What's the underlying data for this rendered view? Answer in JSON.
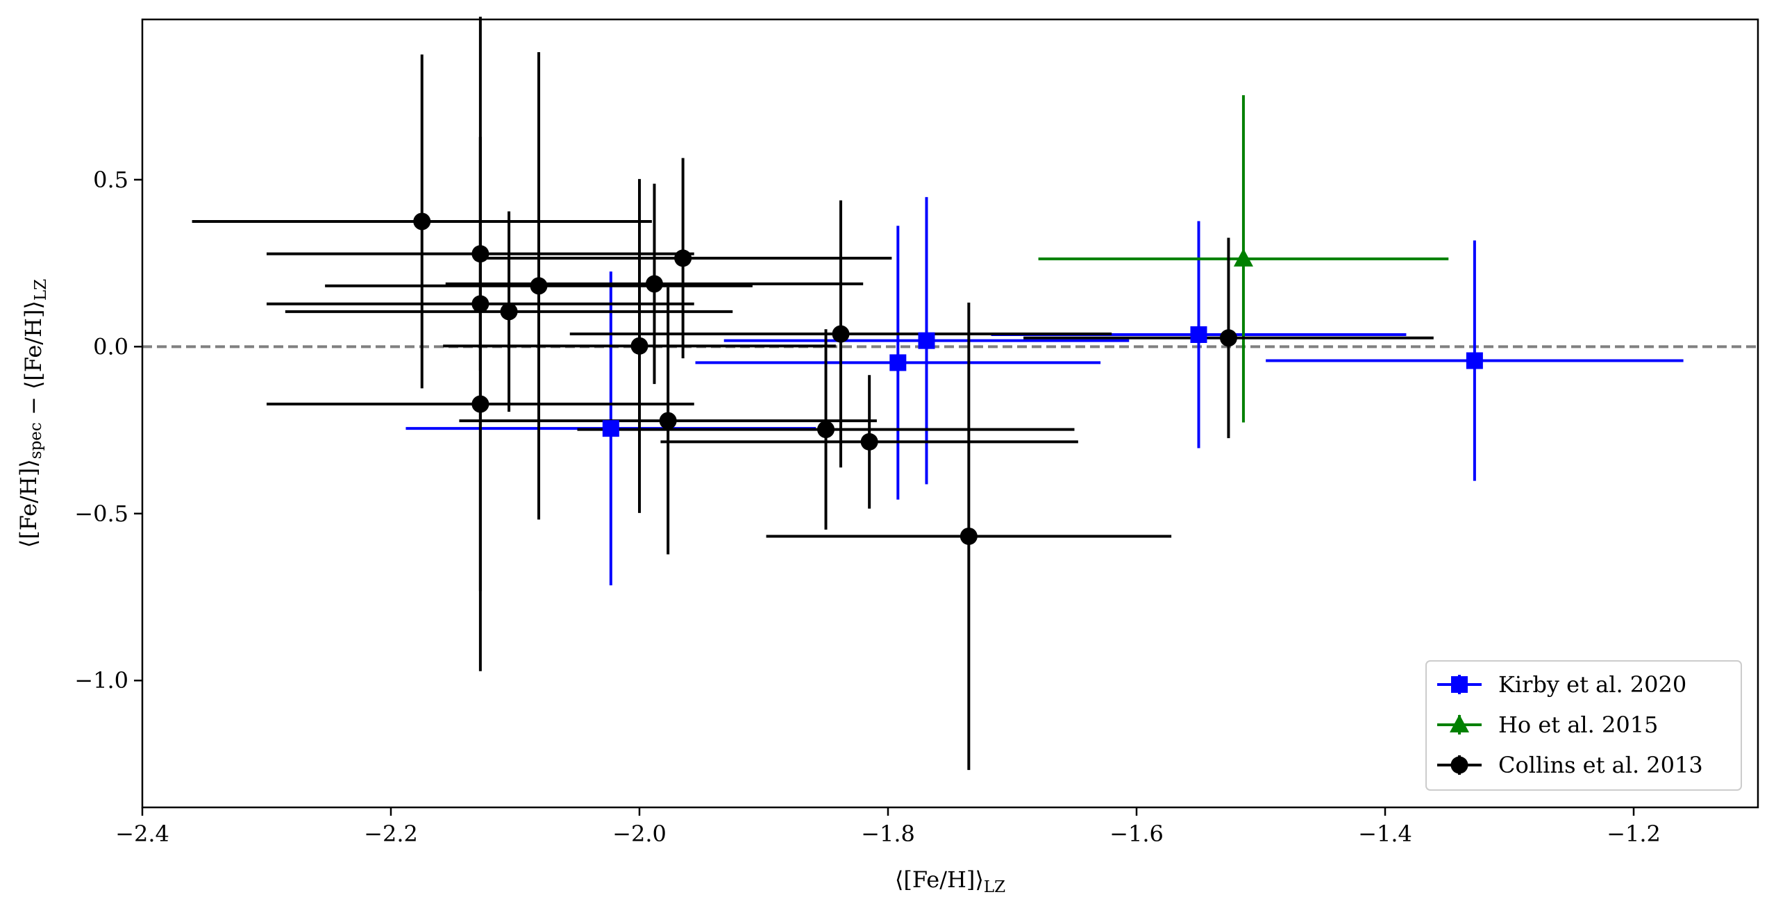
{
  "chart_data": {
    "type": "scatter",
    "title": "",
    "xlabel": "⟨[Fe/H]⟩LZ",
    "ylabel": "⟨[Fe/H]⟩spec − ⟨[Fe/H]⟩LZ",
    "xlim": [
      -2.4,
      -1.1
    ],
    "ylim": [
      -1.38,
      0.98
    ],
    "xticks": [
      -2.4,
      -2.2,
      -2.0,
      -1.8,
      -1.6,
      -1.4,
      -1.2
    ],
    "xtick_labels": [
      "−2.4",
      "−2.2",
      "−2.0",
      "−1.8",
      "−1.6",
      "−1.4",
      "−1.2"
    ],
    "yticks": [
      0.5,
      0.0,
      -0.5,
      -1.0
    ],
    "ytick_labels": [
      "0.5",
      "0.0",
      "−0.5",
      "−1.0"
    ],
    "reference_line": {
      "y": 0.0,
      "style": "dashed",
      "color": "#808080"
    },
    "grid": false,
    "legend_position": "bottom-right",
    "series": [
      {
        "name": "Kirby et al. 2020",
        "marker": "square",
        "color": "#0000ff",
        "points": [
          {
            "x": -2.023,
            "y": -0.245,
            "xerr": 0.165,
            "yerr": 0.47
          },
          {
            "x": -1.792,
            "y": -0.048,
            "xerr": 0.163,
            "yerr": 0.41
          },
          {
            "x": -1.769,
            "y": 0.018,
            "xerr": 0.163,
            "yerr": 0.43
          },
          {
            "x": -1.55,
            "y": 0.036,
            "xerr": 0.167,
            "yerr": 0.34
          },
          {
            "x": -1.328,
            "y": -0.042,
            "xerr": 0.168,
            "yerr": 0.36
          }
        ]
      },
      {
        "name": "Ho et al. 2015",
        "marker": "triangle",
        "color": "#008000",
        "points": [
          {
            "x": -1.514,
            "y": 0.263,
            "xerr": 0.165,
            "yerr": 0.49
          }
        ]
      },
      {
        "name": "Collins et al. 2013",
        "marker": "circle",
        "color": "#000000",
        "points": [
          {
            "x": -2.175,
            "y": 0.375,
            "xerr": 0.185,
            "yerr": 0.5
          },
          {
            "x": -2.128,
            "y": 0.278,
            "xerr": 0.172,
            "yerr": 0.35
          },
          {
            "x": -2.128,
            "y": 0.128,
            "xerr": 0.172,
            "yerr": 0.86
          },
          {
            "x": -2.128,
            "y": -0.172,
            "xerr": 0.172,
            "yerr": 0.8
          },
          {
            "x": -2.105,
            "y": 0.105,
            "xerr": 0.18,
            "yerr": 0.3
          },
          {
            "x": -2.081,
            "y": 0.182,
            "xerr": 0.172,
            "yerr": 0.7
          },
          {
            "x": -2.0,
            "y": 0.002,
            "xerr": 0.158,
            "yerr": 0.5
          },
          {
            "x": -1.988,
            "y": 0.188,
            "xerr": 0.168,
            "yerr": 0.3
          },
          {
            "x": -1.977,
            "y": -0.222,
            "xerr": 0.168,
            "yerr": 0.4
          },
          {
            "x": -1.965,
            "y": 0.265,
            "xerr": 0.168,
            "yerr": 0.3
          },
          {
            "x": -1.85,
            "y": -0.248,
            "xerr": 0.2,
            "yerr": 0.3
          },
          {
            "x": -1.838,
            "y": 0.038,
            "xerr": 0.218,
            "yerr": 0.4
          },
          {
            "x": -1.815,
            "y": -0.285,
            "xerr": 0.168,
            "yerr": 0.2
          },
          {
            "x": -1.735,
            "y": -0.568,
            "xerr": 0.163,
            "yerr": 0.7
          },
          {
            "x": -1.526,
            "y": 0.026,
            "xerr": 0.165,
            "yerr": 0.3
          }
        ]
      }
    ]
  }
}
